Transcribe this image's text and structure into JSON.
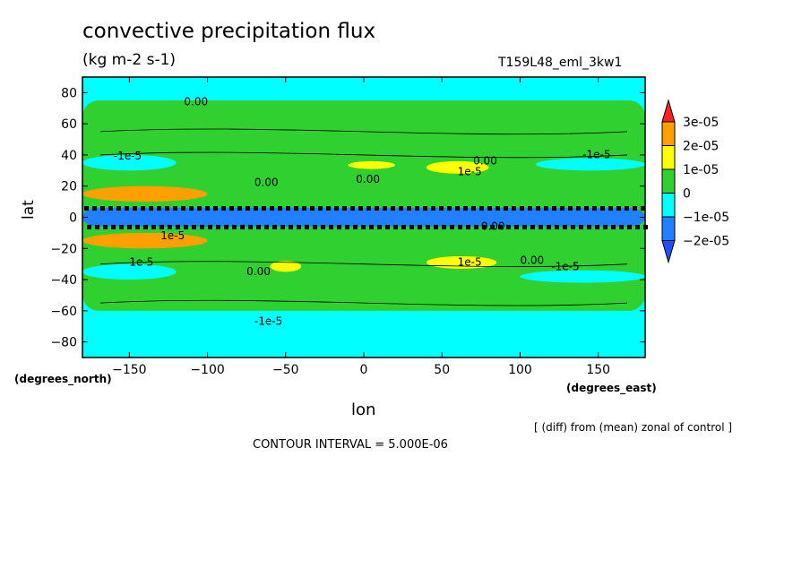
{
  "chart_data": {
    "type": "heatmap",
    "title": "convective precipitation flux",
    "units": "(kg m-2 s-1)",
    "run_label": "T159L48_eml_3kw1",
    "xlabel": "lon",
    "ylabel": "lat",
    "x_unit_label": "(degrees_east)",
    "y_unit_label": "(degrees_north)",
    "xlim": [
      -180,
      180
    ],
    "ylim": [
      -90,
      90
    ],
    "x_ticks": [
      -150,
      -100,
      -50,
      0,
      50,
      100,
      150
    ],
    "y_ticks": [
      80,
      60,
      40,
      20,
      0,
      -20,
      -40,
      -60,
      -80
    ],
    "x_tick_labels": [
      "−150",
      "−100",
      "−50",
      "0",
      "50",
      "100",
      "150"
    ],
    "y_tick_labels": [
      "80",
      "60",
      "40",
      "20",
      "0",
      "−20",
      "−40",
      "−60",
      "−80"
    ],
    "colorbar": {
      "labels": [
        "3e-05",
        "2e-05",
        "1e-05",
        "0",
        "−1e-05",
        "−2e-05"
      ],
      "levels": [
        3e-05,
        2e-05,
        1e-05,
        0,
        -1e-05,
        -2e-05
      ],
      "colors": [
        "#ff2020",
        "#ffa000",
        "#ffff00",
        "#30d030",
        "#00ffff",
        "#2080ff",
        "#1e50ff"
      ]
    },
    "contour_labels": [
      "0.00",
      "0.00",
      "0.00",
      "0.00",
      "0.00",
      "0.00",
      "0.00",
      "-1e-5",
      "-1e-5",
      "-1e-5",
      "1e-5",
      "1e-5",
      "1e-5",
      "1e-5",
      "-1e-5"
    ],
    "regions": [
      {
        "level": 0,
        "lon": [
          -180,
          180
        ],
        "lat": [
          -60,
          75
        ]
      },
      {
        "level": 1e-05,
        "lon": [
          -10,
          20
        ],
        "lat": [
          31,
          36
        ]
      },
      {
        "level": 1e-05,
        "lon": [
          40,
          80
        ],
        "lat": [
          28,
          36
        ]
      },
      {
        "level": 1e-05,
        "lon": [
          40,
          85
        ],
        "lat": [
          -33,
          -25
        ]
      },
      {
        "level": 1e-05,
        "lon": [
          -60,
          -40
        ],
        "lat": [
          -35,
          -28
        ]
      },
      {
        "level": -1e-05,
        "lon": [
          -180,
          -120
        ],
        "lat": [
          30,
          40
        ]
      },
      {
        "level": -1e-05,
        "lon": [
          110,
          180
        ],
        "lat": [
          30,
          38
        ]
      },
      {
        "level": -1e-05,
        "lon": [
          -180,
          -120
        ],
        "lat": [
          -40,
          -30
        ]
      },
      {
        "level": -1e-05,
        "lon": [
          100,
          180
        ],
        "lat": [
          -42,
          -34
        ]
      },
      {
        "level": 2e-05,
        "lon": [
          -180,
          -100
        ],
        "lat": [
          10,
          20
        ]
      },
      {
        "level": 2e-05,
        "lon": [
          -180,
          -100
        ],
        "lat": [
          -20,
          -10
        ]
      },
      {
        "level": -2e-05,
        "lon": [
          -180,
          180
        ],
        "lat": [
          -6,
          6
        ]
      }
    ]
  },
  "footer": {
    "note": "[ (diff) from (mean) zonal of control ]",
    "contour_interval": "CONTOUR INTERVAL = 5.000E-06"
  }
}
